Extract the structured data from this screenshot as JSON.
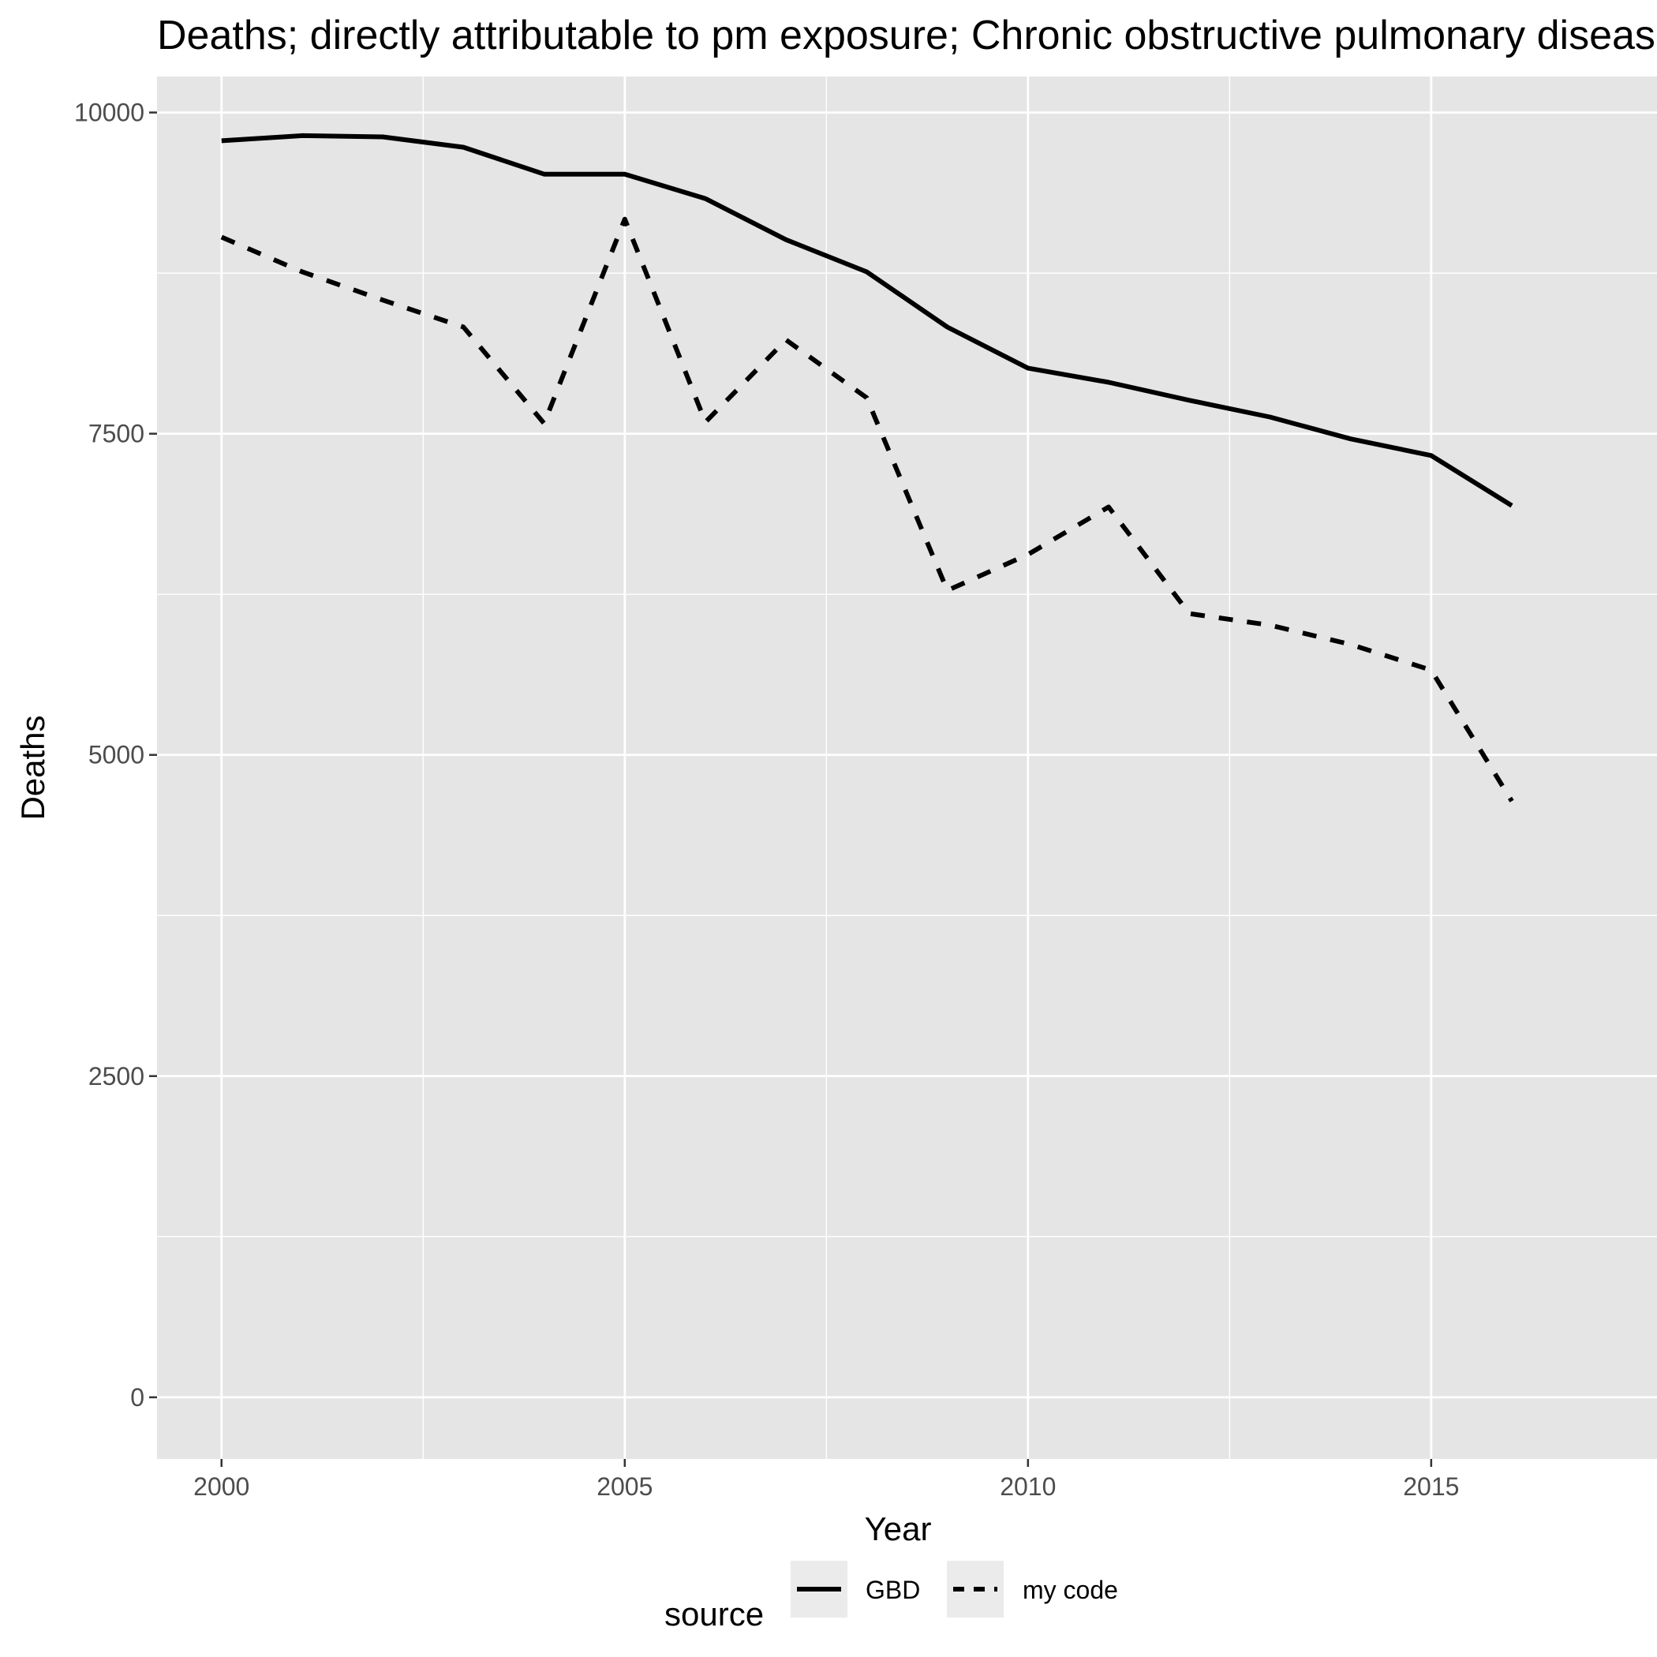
{
  "chart_data": {
    "type": "line",
    "title": "Deaths; directly attributable to pm exposure; Chronic obstructive pulmonary disease",
    "xlabel": "Year",
    "ylabel": "Deaths",
    "x": [
      2000,
      2001,
      2002,
      2003,
      2004,
      2005,
      2006,
      2007,
      2008,
      2009,
      2010,
      2011,
      2012,
      2013,
      2014,
      2015,
      2016
    ],
    "xlim": [
      1999.2,
      2017.8
    ],
    "ylim": [
      -480,
      10280
    ],
    "x_ticks": [
      2000,
      2005,
      2010,
      2015
    ],
    "y_ticks": [
      0,
      2500,
      5000,
      7500,
      10000
    ],
    "x_tick_labels": [
      "2000",
      "2005",
      "2010",
      "2015"
    ],
    "y_tick_labels": [
      "0",
      "2500",
      "5000",
      "7500",
      "10000"
    ],
    "grid": true,
    "legend": {
      "title": "source",
      "position": "bottom"
    },
    "series": [
      {
        "name": "GBD",
        "linestyle": "solid",
        "values": [
          9780,
          9820,
          9810,
          9730,
          9520,
          9520,
          9330,
          9010,
          8760,
          8330,
          8010,
          7900,
          7760,
          7630,
          7460,
          7330,
          6940
        ]
      },
      {
        "name": "my code",
        "linestyle": "dashed",
        "values": [
          9030,
          8760,
          8540,
          8330,
          7580,
          9170,
          7590,
          8230,
          7780,
          6280,
          6560,
          6930,
          6100,
          6010,
          5860,
          5660,
          4640
        ]
      }
    ],
    "colors": {
      "panel": "#e5e5e5",
      "grid": "#ffffff",
      "line": "#000000",
      "legend_key": "#ebebeb"
    }
  }
}
